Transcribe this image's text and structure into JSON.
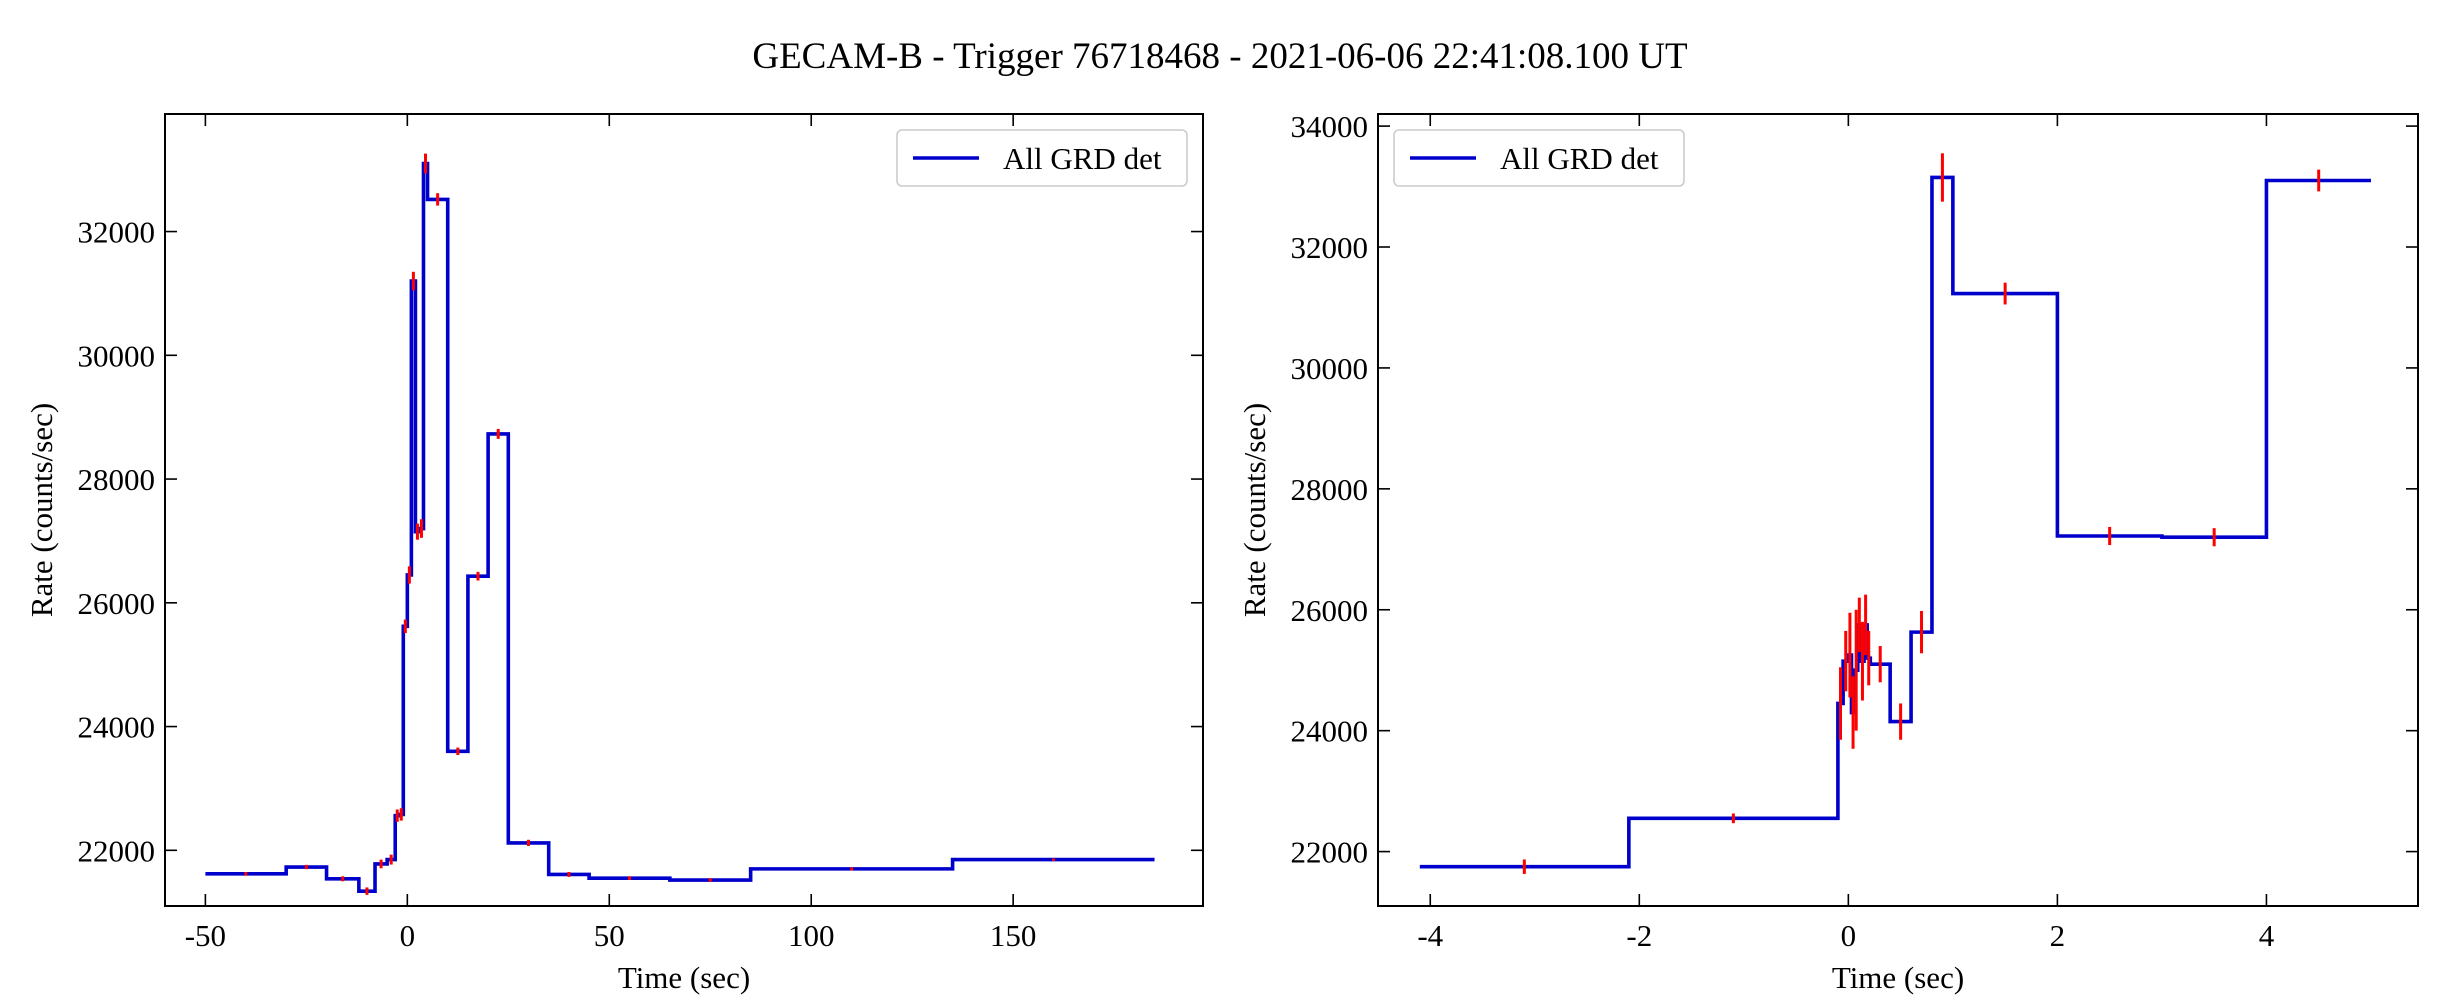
{
  "figure_title": "GECAM-B - Trigger 76718468 - 2021-06-06 22:41:08.100 UT",
  "colors": {
    "step": "#0000cc",
    "error": "#ff0000",
    "axes": "#000000",
    "legend_border": "#cccccc"
  },
  "chart_data": [
    {
      "type": "line",
      "title": "",
      "xlabel": "Time (sec)",
      "ylabel": "Rate (counts/sec)",
      "xlim": [
        -60,
        197
      ],
      "ylim": [
        21100,
        33900
      ],
      "xticks": [
        -50,
        0,
        50,
        100,
        150
      ],
      "yticks": [
        22000,
        24000,
        26000,
        28000,
        30000,
        32000
      ],
      "grid": false,
      "legend_position": "top-right",
      "series": [
        {
          "name": "All GRD det",
          "edges": [
            -50,
            -30,
            -20,
            -12,
            -8,
            -5,
            -3,
            -2,
            -1,
            0,
            1,
            2,
            3,
            4,
            5,
            10,
            15,
            20,
            25,
            35,
            45,
            65,
            85,
            135,
            185
          ],
          "values": [
            21620,
            21730,
            21540,
            21340,
            21780,
            21850,
            22560,
            22580,
            25620,
            26450,
            31200,
            27150,
            27200,
            33100,
            32520,
            23600,
            26430,
            28730,
            22120,
            21610,
            21550,
            21520,
            21700,
            21850
          ],
          "errors": [
            30,
            35,
            40,
            60,
            70,
            80,
            100,
            100,
            110,
            140,
            150,
            130,
            150,
            160,
            100,
            60,
            70,
            80,
            50,
            40,
            30,
            30,
            25,
            20
          ]
        }
      ]
    },
    {
      "type": "line",
      "title": "",
      "xlabel": "Time (sec)",
      "ylabel": "Rate (counts/sec)",
      "xlim": [
        -4.5,
        5.45
      ],
      "ylim": [
        21100,
        34200
      ],
      "xticks": [
        -4,
        -2,
        0,
        2,
        4
      ],
      "yticks": [
        22000,
        24000,
        26000,
        28000,
        30000,
        32000,
        34000
      ],
      "grid": false,
      "legend_position": "top-left",
      "series": [
        {
          "name": "All GRD det",
          "edges": [
            -4.1,
            -2.1,
            -0.1,
            -0.05,
            0,
            0.03,
            0.06,
            0.09,
            0.12,
            0.15,
            0.18,
            0.21,
            0.4,
            0.6,
            0.8,
            1.0,
            2.0,
            3.0,
            4.0,
            5.0
          ],
          "values": [
            21750,
            22550,
            24450,
            25150,
            25250,
            24300,
            25000,
            25750,
            25150,
            25750,
            25200,
            25100,
            24150,
            25630,
            33150,
            31230,
            27220,
            27200,
            33100
          ],
          "errors": [
            120,
            80,
            600,
            500,
            700,
            600,
            1000,
            450,
            650,
            500,
            450,
            300,
            300,
            350,
            400,
            180,
            150,
            150,
            180
          ]
        }
      ]
    }
  ]
}
